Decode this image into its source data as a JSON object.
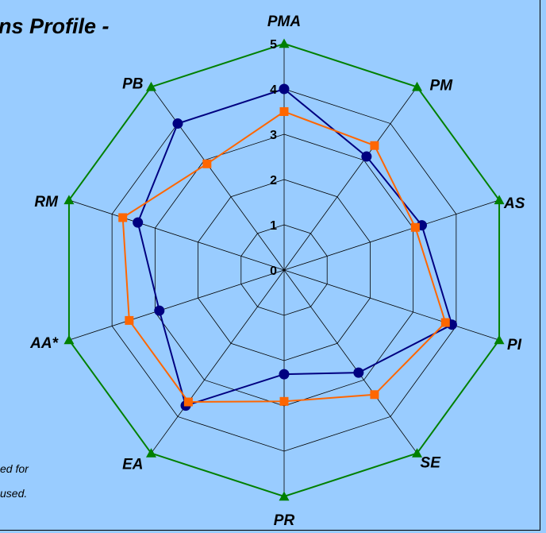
{
  "title": "ns Profile -",
  "footnote_lines": [
    "ed for",
    "used."
  ],
  "colors": {
    "background": "#99ccff",
    "grid": "#000000",
    "series_max": "#008000",
    "series_a": "#000080",
    "series_b": "#ff6600"
  },
  "chart_data": {
    "type": "radar",
    "categories": [
      "PMA",
      "PM",
      "AS",
      "PI",
      "SE",
      "PR",
      "EA",
      "AA*",
      "RM",
      "PB"
    ],
    "rlim": [
      0,
      5
    ],
    "ticks": [
      "0",
      "1",
      "2",
      "3",
      "4",
      "5"
    ],
    "grid": true,
    "legend": "none",
    "series": [
      {
        "values": [
          5,
          5,
          5,
          5,
          5,
          5,
          5,
          5,
          5,
          5
        ],
        "color": "#008000",
        "marker": "triangle"
      },
      {
        "values": [
          4.0,
          3.1,
          3.2,
          3.9,
          2.8,
          2.3,
          3.7,
          2.9,
          3.4,
          4.0
        ],
        "color": "#000080",
        "marker": "circle"
      },
      {
        "values": [
          3.5,
          3.4,
          3.05,
          3.75,
          3.4,
          2.9,
          3.6,
          3.6,
          3.75,
          2.9
        ],
        "color": "#ff6600",
        "marker": "square"
      }
    ]
  }
}
